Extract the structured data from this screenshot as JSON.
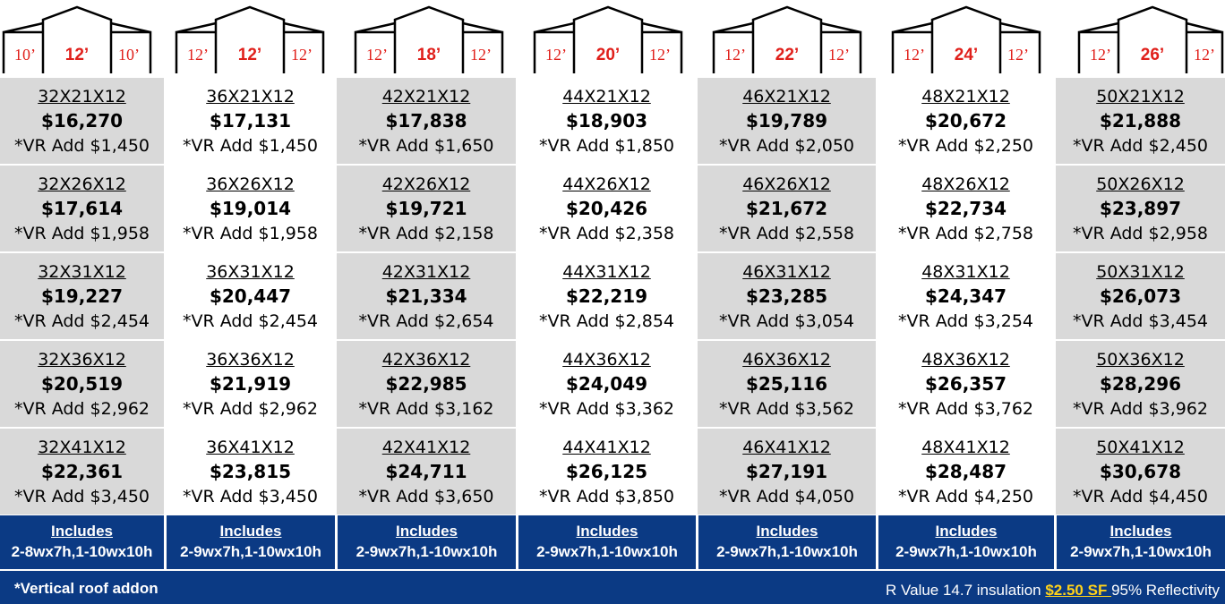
{
  "header": {
    "diagrams": [
      {
        "left": "10’",
        "center": "12’",
        "right": "10’"
      },
      {
        "left": "12’",
        "center": "12’",
        "right": "12’"
      },
      {
        "left": "12’",
        "center": "18’",
        "right": "12’"
      },
      {
        "left": "12’",
        "center": "20’",
        "right": "12’"
      },
      {
        "left": "12’",
        "center": "22’",
        "right": "12’"
      },
      {
        "left": "12’",
        "center": "24’",
        "right": "12’"
      },
      {
        "left": "12’",
        "center": "26’",
        "right": "12’"
      }
    ]
  },
  "grid": {
    "columns": [
      {
        "cells": [
          {
            "size": "32X21X12",
            "price": "$16,270",
            "vr": "*VR Add $1,450"
          },
          {
            "size": "32X26X12",
            "price": "$17,614",
            "vr": "*VR Add $1,958"
          },
          {
            "size": "32X31X12",
            "price": "$19,227",
            "vr": "*VR Add $2,454"
          },
          {
            "size": "32X36X12",
            "price": "$20,519",
            "vr": "*VR Add $2,962"
          },
          {
            "size": "32X41X12",
            "price": "$22,361",
            "vr": "*VR Add $3,450"
          }
        ],
        "includes_title": "Includes",
        "includes_detail": "2-8wx7h,1-10wx10h"
      },
      {
        "cells": [
          {
            "size": "36X21X12",
            "price": "$17,131",
            "vr": "*VR Add $1,450"
          },
          {
            "size": "36X26X12",
            "price": "$19,014",
            "vr": "*VR Add $1,958"
          },
          {
            "size": "36X31X12",
            "price": "$20,447",
            "vr": "*VR Add $2,454"
          },
          {
            "size": "36X36X12",
            "price": "$21,919",
            "vr": "*VR Add $2,962"
          },
          {
            "size": "36X41X12",
            "price": "$23,815",
            "vr": "*VR Add $3,450"
          }
        ],
        "includes_title": "Includes",
        "includes_detail": "2-9wx7h,1-10wx10h"
      },
      {
        "cells": [
          {
            "size": "42X21X12",
            "price": "$17,838",
            "vr": "*VR Add $1,650"
          },
          {
            "size": "42X26X12",
            "price": "$19,721",
            "vr": "*VR Add $2,158"
          },
          {
            "size": "42X31X12",
            "price": "$21,334",
            "vr": "*VR Add $2,654"
          },
          {
            "size": "42X36X12",
            "price": "$22,985",
            "vr": "*VR Add $3,162"
          },
          {
            "size": "42X41X12",
            "price": "$24,711",
            "vr": "*VR Add $3,650"
          }
        ],
        "includes_title": "Includes",
        "includes_detail": "2-9wx7h,1-10wx10h"
      },
      {
        "cells": [
          {
            "size": "44X21X12",
            "price": "$18,903",
            "vr": "*VR Add $1,850"
          },
          {
            "size": "44X26X12",
            "price": "$20,426",
            "vr": "*VR Add $2,358"
          },
          {
            "size": "44X31X12",
            "price": "$22,219",
            "vr": "*VR Add $2,854"
          },
          {
            "size": "44X36X12",
            "price": "$24,049",
            "vr": "*VR Add $3,362"
          },
          {
            "size": "44X41X12",
            "price": "$26,125",
            "vr": "*VR Add $3,850"
          }
        ],
        "includes_title": "Includes",
        "includes_detail": "2-9wx7h,1-10wx10h"
      },
      {
        "cells": [
          {
            "size": "46X21X12",
            "price": "$19,789",
            "vr": "*VR Add $2,050"
          },
          {
            "size": "46X26X12",
            "price": "$21,672",
            "vr": "*VR Add $2,558"
          },
          {
            "size": "46X31X12",
            "price": "$23,285",
            "vr": "*VR Add $3,054"
          },
          {
            "size": "46X36X12",
            "price": "$25,116",
            "vr": "*VR Add $3,562"
          },
          {
            "size": "46X41X12",
            "price": "$27,191",
            "vr": "*VR Add $4,050"
          }
        ],
        "includes_title": "Includes",
        "includes_detail": "2-9wx7h,1-10wx10h"
      },
      {
        "cells": [
          {
            "size": "48X21X12",
            "price": "$20,672",
            "vr": "*VR Add $2,250"
          },
          {
            "size": "48X26X12",
            "price": "$22,734",
            "vr": "*VR Add $2,758"
          },
          {
            "size": "48X31X12",
            "price": "$24,347",
            "vr": "*VR Add $3,254"
          },
          {
            "size": "48X36X12",
            "price": "$26,357",
            "vr": "*VR Add $3,762"
          },
          {
            "size": "48X41X12",
            "price": "$28,487",
            "vr": "*VR Add $4,250"
          }
        ],
        "includes_title": "Includes",
        "includes_detail": "2-9wx7h,1-10wx10h"
      },
      {
        "cells": [
          {
            "size": "50X21X12",
            "price": "$21,888",
            "vr": "*VR Add $2,450"
          },
          {
            "size": "50X26X12",
            "price": "$23,897",
            "vr": "*VR Add $2,958"
          },
          {
            "size": "50X31X12",
            "price": "$26,073",
            "vr": "*VR Add $3,454"
          },
          {
            "size": "50X36X12",
            "price": "$28,296",
            "vr": "*VR Add $3,962"
          },
          {
            "size": "50X41X12",
            "price": "$30,678",
            "vr": "*VR Add $4,450"
          }
        ],
        "includes_title": "Includes",
        "includes_detail": "2-9wx7h,1-10wx10h"
      }
    ]
  },
  "footer": {
    "note": "*Vertical roof addon",
    "insulation_prefix": "R Value 14.7 insulation ",
    "insulation_price": "$2.50 SF ",
    "insulation_suffix": " 95% Reflectivity"
  },
  "colors": {
    "accent_blue": "#0b3a84",
    "label_red": "#e0201b",
    "cell_gray": "#d9d9d9",
    "price_highlight": "#ffd21a"
  }
}
